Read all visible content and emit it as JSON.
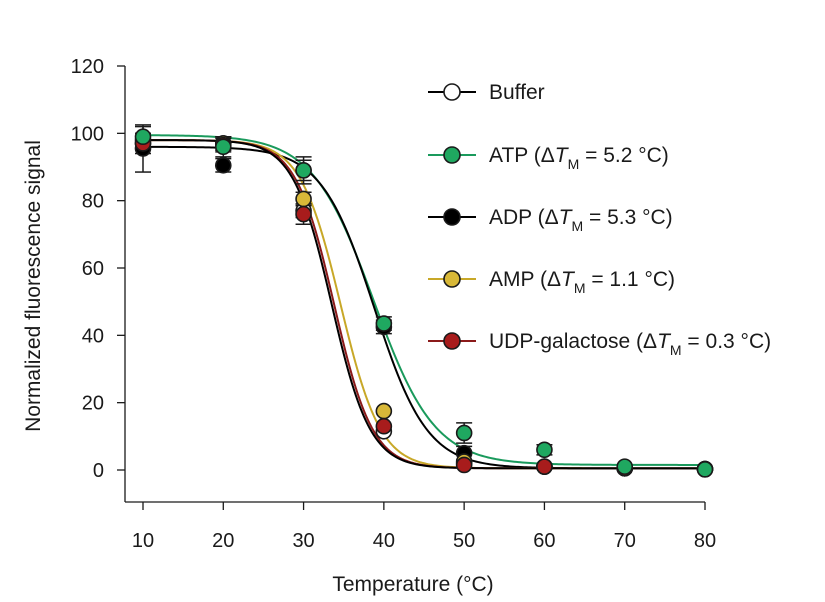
{
  "chart_data": {
    "type": "scatter",
    "title": "",
    "xlabel": "Temperature (°C)",
    "ylabel": "Normalized fluorescence signal",
    "xlim": [
      8,
      80
    ],
    "ylim": [
      -10,
      120
    ],
    "x_ticks": [
      10,
      20,
      30,
      40,
      50,
      60,
      70,
      80
    ],
    "y_ticks": [
      0,
      20,
      40,
      60,
      80,
      100,
      120
    ],
    "x_tick_labels": [
      "10",
      "20",
      "30",
      "40",
      "50",
      "60",
      "70",
      "80"
    ],
    "y_tick_labels": [
      "0",
      "20",
      "40",
      "60",
      "80",
      "100",
      "120"
    ],
    "grid": false,
    "legend_position": "top-right",
    "x": [
      10,
      20,
      30,
      40,
      50,
      60,
      70,
      80
    ],
    "series": [
      {
        "name": "Buffer",
        "legend_parts": [
          "Buffer"
        ],
        "color": "#000000",
        "marker_fill": "#ffffff",
        "curve": {
          "top": 98,
          "bottom": 0.5,
          "tm": 33.5,
          "slope": 2.4
        },
        "values": [
          97,
          97,
          77,
          11.5,
          2,
          1,
          0.5,
          0.3
        ],
        "errors": [
          2,
          2,
          2,
          1,
          1,
          0.5,
          0.5,
          0.5
        ]
      },
      {
        "name": "ATP (ΔTM = 5.2 °C)",
        "legend_parts": [
          "ATP (Δ",
          "T",
          "M",
          " = 5.2 °C)"
        ],
        "color": "#1a9a5c",
        "marker_fill": "#1fa860",
        "curve": {
          "top": 99.5,
          "bottom": 1.5,
          "tm": 38.7,
          "slope": 3.8
        },
        "values": [
          99,
          96,
          89,
          43.5,
          11,
          6,
          1,
          0.2
        ],
        "errors": [
          3,
          3,
          4,
          2,
          3,
          1.5,
          1,
          0.5
        ]
      },
      {
        "name": "ADP (ΔTM = 5.3 °C)",
        "legend_parts": [
          "ADP (Δ",
          "T",
          "M",
          " = 5.3 °C)"
        ],
        "color": "#000000",
        "marker_fill": "#000000",
        "curve": {
          "top": 96,
          "bottom": 0.5,
          "tm": 38.8,
          "slope": 3.3
        },
        "values": [
          95.5,
          90.5,
          89,
          42.5,
          5,
          1,
          0.5,
          0.2
        ],
        "errors": [
          7,
          2,
          3,
          2,
          2,
          1,
          0.5,
          0.5
        ]
      },
      {
        "name": "AMP (ΔTM = 1.1 °C)",
        "legend_parts": [
          "AMP (Δ",
          "T",
          "M",
          " = 1.1 °C)"
        ],
        "color": "#c8a828",
        "marker_fill": "#d8b838",
        "curve": {
          "top": 98,
          "bottom": 0.5,
          "tm": 34.6,
          "slope": 2.5
        },
        "values": [
          98,
          97,
          80.5,
          17.5,
          2.5,
          1,
          0.5,
          0.3
        ],
        "errors": [
          2,
          2,
          2,
          1,
          1,
          0.5,
          0.5,
          0.5
        ]
      },
      {
        "name": "UDP-galactose (ΔTM = 0.3 °C)",
        "legend_parts": [
          "UDP-galactose (Δ",
          "T",
          "M",
          " = 0.3 °C)"
        ],
        "color": "#8b1a1a",
        "marker_fill": "#a81c1c",
        "curve": {
          "top": 98,
          "bottom": 0.5,
          "tm": 33.8,
          "slope": 2.4
        },
        "values": [
          97,
          96.5,
          76,
          13,
          1.5,
          1,
          0.5,
          0.3
        ],
        "errors": [
          3,
          2,
          3,
          1,
          1,
          0.5,
          0.5,
          0.5
        ]
      }
    ]
  }
}
